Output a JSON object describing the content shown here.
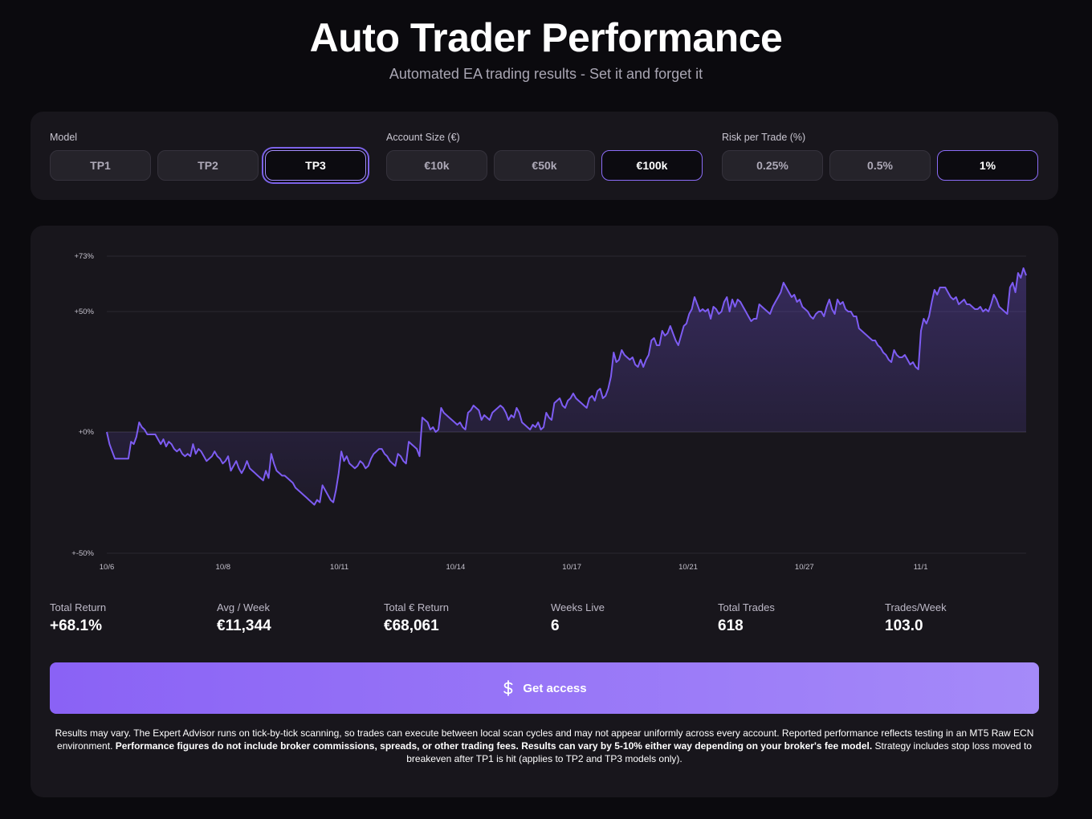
{
  "header": {
    "title": "Auto Trader Performance",
    "subtitle": "Automated EA trading results - Set it and forget it"
  },
  "controls": {
    "model": {
      "label": "Model",
      "options": [
        "TP1",
        "TP2",
        "TP3"
      ],
      "selected": "TP3"
    },
    "account": {
      "label": "Account Size (€)",
      "options": [
        "€10k",
        "€50k",
        "€100k"
      ],
      "selected": "€100k"
    },
    "risk": {
      "label": "Risk per Trade (%)",
      "options": [
        "0.25%",
        "0.5%",
        "1%"
      ],
      "selected": "1%"
    }
  },
  "colors": {
    "accent": "#8b6cf7",
    "line": "#7d5cf2",
    "background": "#0b0a0e",
    "panel": "#18161c"
  },
  "chart_data": {
    "type": "area",
    "title": "",
    "xlabel": "",
    "ylabel": "",
    "ylim": [
      -50,
      73
    ],
    "y_ticks": [
      {
        "value": 73,
        "label": "+73%"
      },
      {
        "value": 50,
        "label": "+50%"
      },
      {
        "value": 0,
        "label": "+0%"
      },
      {
        "value": -50,
        "label": "+-50%"
      }
    ],
    "x_ticks": [
      "10/6",
      "10/8",
      "10/11",
      "10/14",
      "10/17",
      "10/21",
      "10/27",
      "11/1"
    ],
    "grid": "horizontal",
    "series": [
      {
        "values": [
          0,
          -5,
          -8,
          -11,
          -11,
          -11,
          -11,
          -11,
          -11,
          -4,
          -5,
          -2,
          4,
          2,
          1,
          -1,
          -1,
          -1,
          -1,
          -3,
          -5,
          -3,
          -6,
          -4,
          -5,
          -7,
          -8,
          -7,
          -9,
          -10,
          -9,
          -10,
          -5,
          -9,
          -7,
          -8,
          -10,
          -12,
          -11,
          -10,
          -8,
          -10,
          -11,
          -13,
          -12,
          -10,
          -16,
          -14,
          -12,
          -15,
          -17,
          -15,
          -12,
          -15,
          -16,
          -17,
          -18,
          -19,
          -20,
          -16,
          -19,
          -9,
          -13,
          -16,
          -17,
          -18,
          -18,
          -19,
          -20,
          -21,
          -23,
          -24,
          -25,
          -26,
          -27,
          -28,
          -29,
          -30,
          -28,
          -29,
          -22,
          -24,
          -26,
          -28,
          -29,
          -24,
          -17,
          -8,
          -12,
          -10,
          -13,
          -14,
          -15,
          -14,
          -12,
          -13,
          -15,
          -14,
          -11,
          -9,
          -8,
          -7,
          -7,
          -9,
          -10,
          -12,
          -13,
          -14,
          -9,
          -10,
          -12,
          -13,
          -4,
          -5,
          -6,
          -7,
          -10,
          6,
          5,
          4,
          1,
          2,
          0,
          1,
          10,
          8,
          7,
          6,
          5,
          4,
          3,
          4,
          2,
          1,
          8,
          9,
          11,
          10,
          9,
          5,
          7,
          6,
          5,
          8,
          9,
          10,
          11,
          10,
          8,
          5,
          7,
          6,
          10,
          8,
          4,
          3,
          2,
          1,
          3,
          2,
          4,
          1,
          2,
          8,
          6,
          5,
          12,
          13,
          14,
          11,
          10,
          13,
          14,
          16,
          14,
          13,
          12,
          11,
          10,
          14,
          15,
          13,
          17,
          18,
          14,
          15,
          18,
          23,
          33,
          29,
          30,
          34,
          32,
          31,
          30,
          31,
          28,
          27,
          30,
          27,
          30,
          32,
          38,
          39,
          36,
          36,
          42,
          40,
          41,
          44,
          41,
          38,
          36,
          40,
          44,
          45,
          49,
          51,
          56,
          53,
          50,
          51,
          50,
          51,
          47,
          52,
          51,
          49,
          50,
          54,
          56,
          50,
          55,
          52,
          55,
          54,
          52,
          50,
          48,
          46,
          47,
          47,
          53,
          52,
          51,
          50,
          49,
          52,
          54,
          56,
          58,
          62,
          60,
          58,
          56,
          57,
          54,
          55,
          52,
          51,
          50,
          48,
          47,
          49,
          50,
          50,
          48,
          52,
          55,
          51,
          49,
          55,
          53,
          54,
          51,
          50,
          50,
          48,
          48,
          43,
          42,
          41,
          40,
          39,
          38,
          38,
          36,
          35,
          33,
          32,
          30,
          29,
          34,
          32,
          31,
          31,
          32,
          30,
          28,
          29,
          27,
          26,
          42,
          47,
          45,
          48,
          54,
          59,
          57,
          60,
          60,
          60,
          58,
          56,
          55,
          56,
          53,
          54,
          55,
          53,
          53,
          52,
          51,
          51,
          52,
          50,
          51,
          50,
          53,
          57,
          55,
          52,
          51,
          50,
          49,
          60,
          62,
          58,
          66,
          64,
          68,
          65
        ]
      }
    ]
  },
  "stats": [
    {
      "label": "Total Return",
      "value": "+68.1%"
    },
    {
      "label": "Avg / Week",
      "value": "€11,344"
    },
    {
      "label": "Total € Return",
      "value": "€68,061"
    },
    {
      "label": "Weeks Live",
      "value": "6"
    },
    {
      "label": "Total Trades",
      "value": "618"
    },
    {
      "label": "Trades/Week",
      "value": "103.0"
    }
  ],
  "cta": {
    "label": "Get access",
    "icon": "dollar-icon"
  },
  "disclaimer": {
    "part1": "Results may vary. The Expert Advisor runs on tick-by-tick scanning, so trades can execute between local scan cycles and may not appear uniformly across every account. Reported performance reflects testing in an MT5 Raw ECN environment. ",
    "bold": "Performance figures do not include broker commissions, spreads, or other trading fees. Results can vary by 5-10% either way depending on your broker's fee model.",
    "part2": " Strategy includes stop loss moved to breakeven after TP1 is hit (applies to TP2 and TP3 models only)."
  }
}
